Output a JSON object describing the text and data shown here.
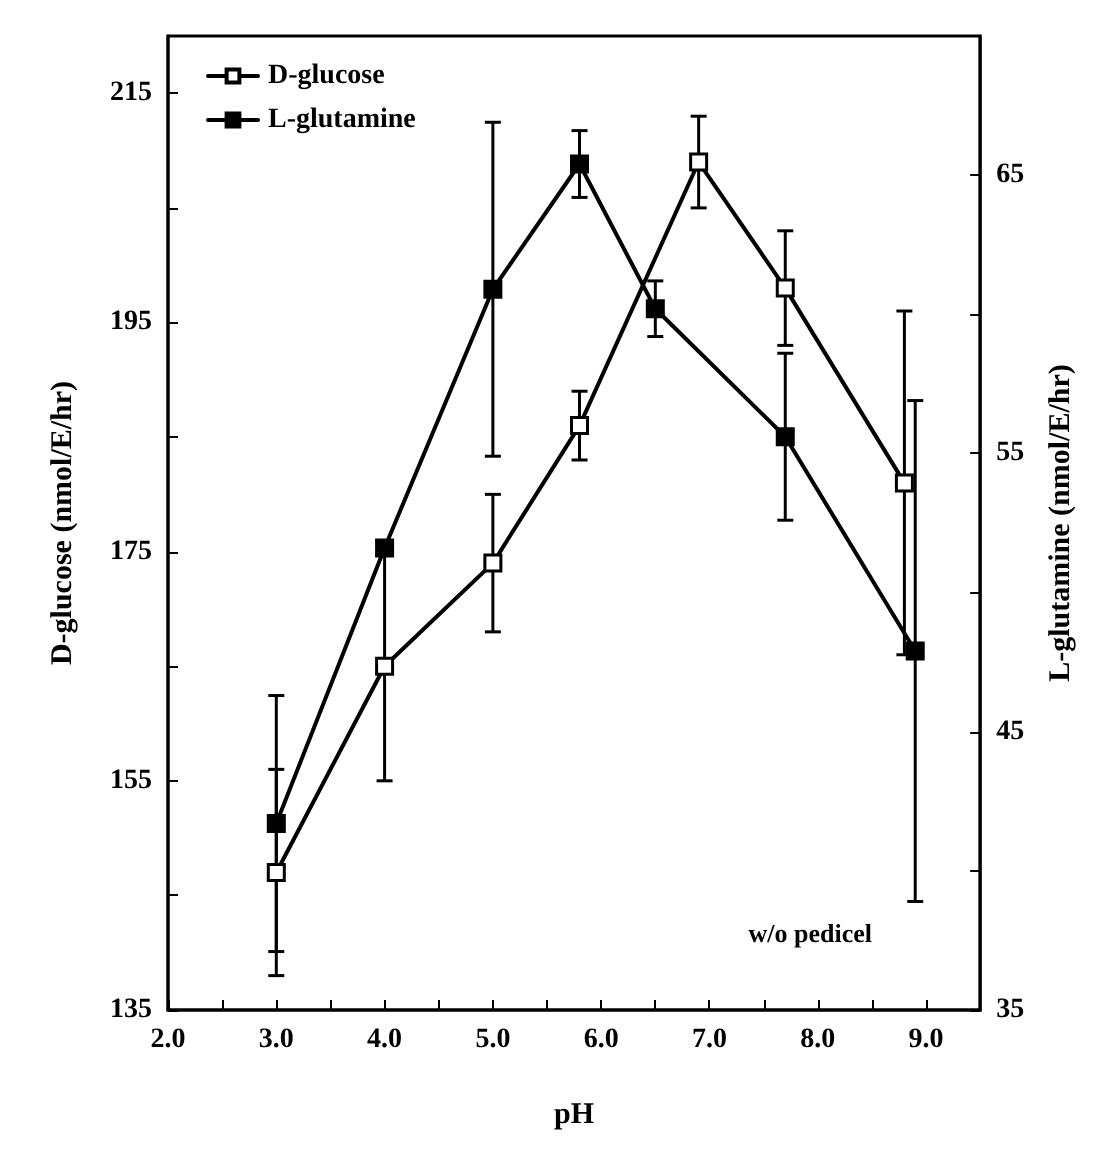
{
  "chart_data": {
    "type": "line",
    "xlabel": "pH",
    "ylabel": "D-glucose (nmol/E/hr)",
    "y2label": "L-glutamine (nmol/E/hr)",
    "xlim": [
      2.0,
      9.5
    ],
    "xticks": [
      {
        "value": 2,
        "label": "2.0"
      },
      {
        "value": 2.5,
        "label": null
      },
      {
        "value": 3,
        "label": "3.0"
      },
      {
        "value": 3.5,
        "label": null
      },
      {
        "value": 4,
        "label": "4.0"
      },
      {
        "value": 4.5,
        "label": null
      },
      {
        "value": 5,
        "label": "5.0"
      },
      {
        "value": 5.5,
        "label": null
      },
      {
        "value": 6,
        "label": "6.0"
      },
      {
        "value": 6.5,
        "label": null
      },
      {
        "value": 7,
        "label": "7.0"
      },
      {
        "value": 7.5,
        "label": null
      },
      {
        "value": 8,
        "label": "8.0"
      },
      {
        "value": 8.5,
        "label": null
      },
      {
        "value": 9,
        "label": "9.0"
      }
    ],
    "ylim": [
      135,
      220
    ],
    "yticks": [
      135,
      {
        "value": 145,
        "label": null
      },
      155,
      {
        "value": 165,
        "label": null
      },
      175,
      {
        "value": 185,
        "label": null
      },
      195,
      {
        "value": 205,
        "label": null
      },
      215
    ],
    "y2lim": [
      35,
      70
    ],
    "y2ticks": [
      35,
      {
        "value": 40,
        "label": null
      },
      45,
      {
        "value": 50,
        "label": null
      },
      55,
      {
        "value": 60,
        "label": null
      },
      65
    ],
    "marker": "square",
    "legend": "top left",
    "grid": false,
    "annotations": [
      "w/o pedicel"
    ],
    "series": [
      {
        "name": "D-glucose",
        "color": "#000000",
        "x": [
          3.0,
          4.0,
          5.0,
          5.8,
          6.9,
          7.7,
          8.8
        ],
        "values": [
          147,
          165,
          174,
          186,
          209,
          198,
          181
        ],
        "errors": [
          9,
          10,
          6,
          3,
          4,
          5,
          15
        ]
      },
      {
        "name": "L-glutamine",
        "color": "#000000",
        "axis": "y2",
        "x": [
          3.0,
          4.0,
          5.0,
          5.8,
          6.5,
          7.7,
          8.9
        ],
        "values": [
          41.7,
          51.6,
          60.9,
          65.4,
          60.2,
          55.6,
          47.9
        ],
        "errors": [
          4.6,
          null,
          6,
          1.2,
          1,
          3,
          9
        ]
      }
    ]
  }
}
